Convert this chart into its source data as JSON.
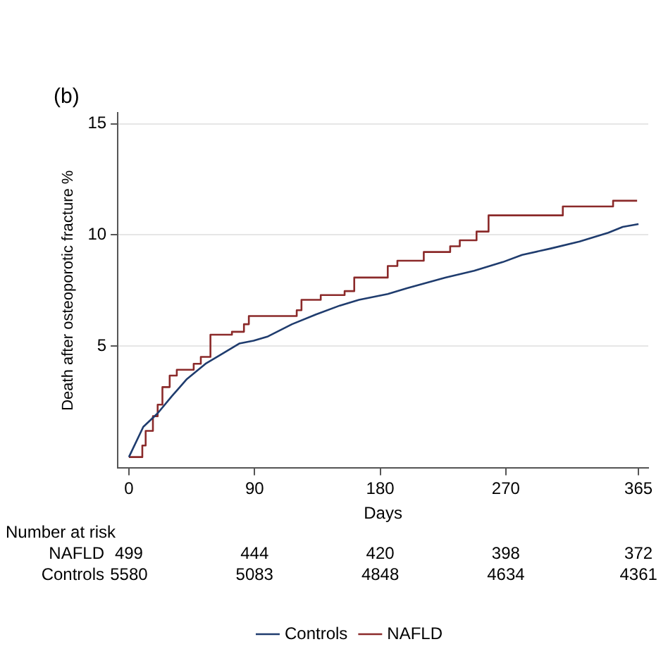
{
  "chart_data": {
    "type": "step",
    "title": "(b)",
    "xlabel": "Days",
    "ylabel": "Death after osteoporotic fracture %",
    "xlim": [
      -8,
      372
    ],
    "xticks": [
      0,
      90,
      180,
      270,
      365
    ],
    "ylim": [
      -0.5,
      15.5
    ],
    "yticks": [
      5,
      10,
      15
    ],
    "grid": "y",
    "legend": "bottom",
    "marker": "none",
    "line_style": "solid",
    "series": [
      {
        "name": "Controls",
        "color": "#1f3c6e",
        "type": "line",
        "x": [
          0,
          10.3,
          20.6,
          30.9,
          41.2,
          54.9,
          68.7,
          79,
          89.3,
          99.6,
          116.8,
          134,
          151.1,
          164.8,
          185.4,
          199.2,
          226.6,
          247.3,
          267.9,
          281.6,
          302.2,
          322.8,
          343.4,
          353.7,
          365
        ],
        "values": [
          0,
          1.36,
          1.97,
          2.75,
          3.49,
          4.2,
          4.72,
          5.11,
          5.24,
          5.43,
          5.98,
          6.42,
          6.82,
          7.08,
          7.34,
          7.6,
          8.08,
          8.39,
          8.78,
          9.1,
          9.39,
          9.7,
          10.1,
          10.36,
          10.49
        ]
      },
      {
        "name": "NAFLD",
        "color": "#8b2a2a",
        "x": [
          0,
          9.6,
          12,
          17.2,
          20.6,
          24,
          29.2,
          34.3,
          46.4,
          51.5,
          58.4,
          73.8,
          82.4,
          85.9,
          120.2,
          123.6,
          137.4,
          154.5,
          161.4,
          185.4,
          192.3,
          211.2,
          230.1,
          237,
          249,
          257.6,
          310.8,
          346.8,
          357.1,
          364
        ],
        "values": [
          0,
          0,
          0.52,
          1.18,
          1.84,
          2.36,
          3.15,
          3.67,
          3.93,
          4.2,
          4.51,
          5.51,
          5.64,
          5.98,
          6.35,
          6.61,
          7.08,
          7.29,
          7.47,
          8.08,
          8.6,
          8.84,
          9.23,
          9.49,
          9.76,
          10.15,
          10.88,
          11.28,
          11.54,
          11.54
        ]
      }
    ],
    "annotations": [
      "Number at risk",
      "NAFLD",
      "499",
      "444",
      "420",
      "398",
      "372",
      "Controls",
      "5580",
      "5083",
      "4848",
      "4634",
      "4361"
    ]
  }
}
